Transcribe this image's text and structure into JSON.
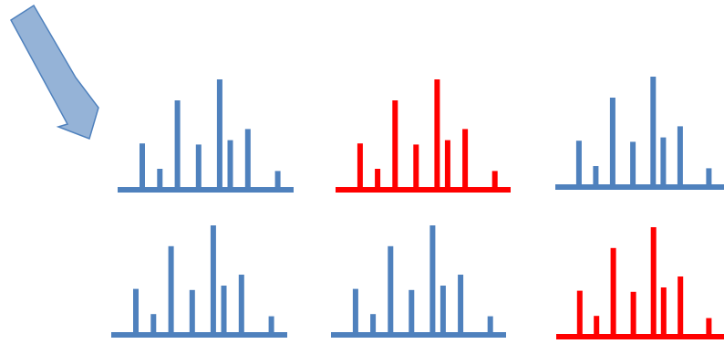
{
  "icons": {
    "pointer": "arrow-icon",
    "panel": "spectrum-icon"
  },
  "colors": {
    "highlight": "#FF0000",
    "normal": "#4F81BD",
    "arrow_fill": "#95B3D7",
    "arrow_stroke": "#4F81BD"
  },
  "panels": [
    {
      "row": 1,
      "column": 1,
      "variant": "normal"
    },
    {
      "row": 1,
      "column": 2,
      "variant": "highlight"
    },
    {
      "row": 1,
      "column": 3,
      "variant": "normal"
    },
    {
      "row": 2,
      "column": 1,
      "variant": "normal"
    },
    {
      "row": 2,
      "column": 2,
      "variant": "normal"
    },
    {
      "row": 2,
      "column": 3,
      "variant": "highlight"
    }
  ],
  "peaks": [
    {
      "position": 0.14,
      "height": 0.42
    },
    {
      "position": 0.24,
      "height": 0.19
    },
    {
      "position": 0.34,
      "height": 0.81
    },
    {
      "position": 0.46,
      "height": 0.41
    },
    {
      "position": 0.58,
      "height": 1.0
    },
    {
      "position": 0.64,
      "height": 0.45
    },
    {
      "position": 0.74,
      "height": 0.55
    },
    {
      "position": 0.91,
      "height": 0.17
    }
  ]
}
